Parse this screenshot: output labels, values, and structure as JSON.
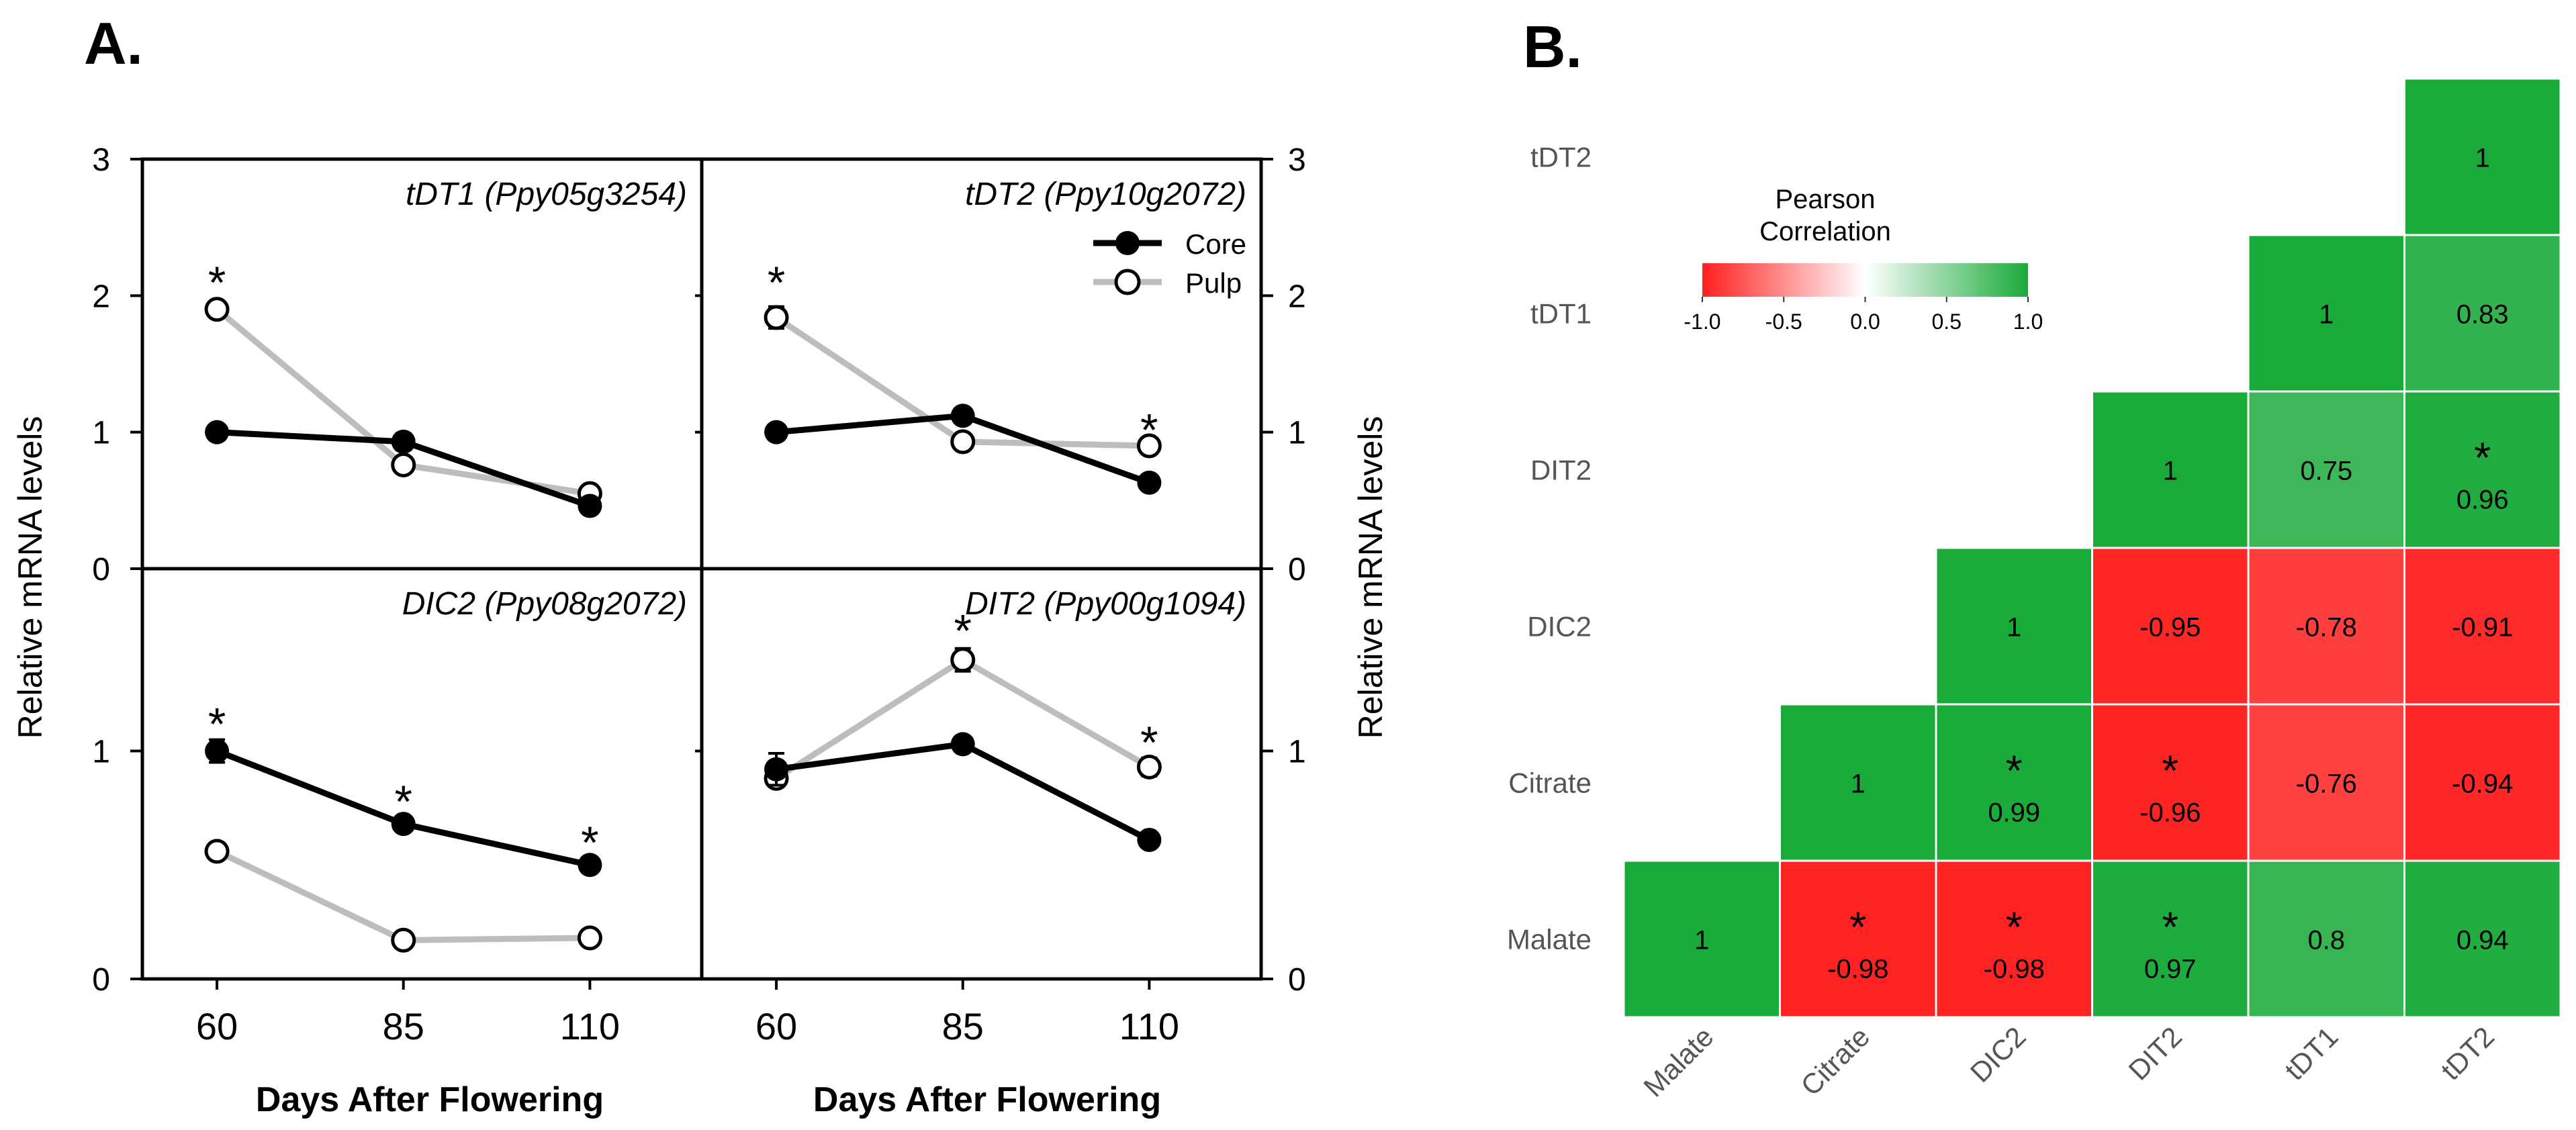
{
  "panel_a_label": "A.",
  "panel_b_label": "B.",
  "colors": {
    "core": "#000000",
    "pulp": "#bdbdbd",
    "positive": "#1aaa3a",
    "negative": "#ff1f1f",
    "neutral": "#ffffff"
  },
  "chart_data": [
    {
      "type": "line",
      "panel": "A",
      "layout": "2x2 small multiples",
      "x": [
        60,
        85,
        110
      ],
      "x_ticks": [
        "60",
        "85",
        "110"
      ],
      "xlabel": "Days After Flowering",
      "ylabel": "Relative mRNA levels",
      "legend": {
        "entries": [
          "Core",
          "Pulp"
        ],
        "placement": "top-right of tDT2 panel"
      },
      "subplots": [
        {
          "title": "tDT1 (Ppy05g3254)",
          "ylim": [
            0,
            3
          ],
          "y_ticks": [
            "0",
            "1",
            "2",
            "3"
          ],
          "series": [
            {
              "name": "Core",
              "values": [
                1.0,
                0.93,
                0.46
              ],
              "errors": [
                0.03,
                0.06,
                0.03
              ]
            },
            {
              "name": "Pulp",
              "values": [
                1.9,
                0.76,
                0.55
              ],
              "errors": [
                0.03,
                0.03,
                0.03
              ]
            }
          ],
          "significance": [
            {
              "x": 60,
              "y": 2.15,
              "text": "*"
            }
          ]
        },
        {
          "title": "tDT2 (Ppy10g2072)",
          "ylim": [
            0,
            3
          ],
          "y_ticks": [
            "0",
            "1",
            "2",
            "3"
          ],
          "series": [
            {
              "name": "Core",
              "values": [
                1.0,
                1.12,
                0.63
              ],
              "errors": [
                0.03,
                0.05,
                0.03
              ]
            },
            {
              "name": "Pulp",
              "values": [
                1.84,
                0.93,
                0.9
              ],
              "errors": [
                0.08,
                0.03,
                0.03
              ]
            }
          ],
          "significance": [
            {
              "x": 60,
              "y": 2.15,
              "text": "*"
            },
            {
              "x": 110,
              "y": 1.07,
              "text": "*"
            }
          ]
        },
        {
          "title": "DIC2 (Ppy08g2072)",
          "ylim": [
            0,
            1.8
          ],
          "y_ticks": [
            "0",
            "1"
          ],
          "series": [
            {
              "name": "Core",
              "values": [
                1.0,
                0.68,
                0.5
              ],
              "errors": [
                0.05,
                0.02,
                0.02
              ]
            },
            {
              "name": "Pulp",
              "values": [
                0.56,
                0.17,
                0.18
              ],
              "errors": [
                0.02,
                0.02,
                0.02
              ]
            }
          ],
          "significance": [
            {
              "x": 60,
              "y": 1.15,
              "text": "*"
            },
            {
              "x": 85,
              "y": 0.81,
              "text": "*"
            },
            {
              "x": 110,
              "y": 0.63,
              "text": "*"
            }
          ]
        },
        {
          "title": "DIT2 (Ppy00g1094)",
          "ylim": [
            0,
            1.8
          ],
          "y_ticks": [
            "0",
            "1"
          ],
          "series": [
            {
              "name": "Core",
              "values": [
                0.92,
                1.03,
                0.61
              ],
              "errors": [
                0.07,
                0.02,
                0.02
              ]
            },
            {
              "name": "Pulp",
              "values": [
                0.88,
                1.4,
                0.93
              ],
              "errors": [
                0.03,
                0.05,
                0.04
              ]
            }
          ],
          "significance": [
            {
              "x": 85,
              "y": 1.56,
              "text": "*"
            },
            {
              "x": 110,
              "y": 1.07,
              "text": "*"
            }
          ]
        }
      ]
    },
    {
      "type": "heatmap",
      "panel": "B",
      "title": "Pearson Correlation",
      "title_lines": [
        "Pearson",
        "Correlation"
      ],
      "x_labels": [
        "Malate",
        "Citrate",
        "DIC2",
        "DIT2",
        "tDT1",
        "tDT2"
      ],
      "y_labels_top_to_bottom": [
        "tDT2",
        "tDT1",
        "DIT2",
        "DIC2",
        "Citrate",
        "Malate"
      ],
      "colorbar": {
        "min": -1.0,
        "max": 1.0,
        "ticks": [
          "-1.0",
          "-0.5",
          "0.0",
          "0.5",
          "1.0"
        ]
      },
      "cells": [
        {
          "row": "Malate",
          "col": "Malate",
          "value": 1,
          "label": "1",
          "sig": false
        },
        {
          "row": "Malate",
          "col": "Citrate",
          "value": -0.98,
          "label": "-0.98",
          "sig": true
        },
        {
          "row": "Malate",
          "col": "DIC2",
          "value": -0.98,
          "label": "-0.98",
          "sig": true
        },
        {
          "row": "Malate",
          "col": "DIT2",
          "value": 0.97,
          "label": "0.97",
          "sig": true
        },
        {
          "row": "Malate",
          "col": "tDT1",
          "value": 0.8,
          "label": "0.8",
          "sig": false
        },
        {
          "row": "Malate",
          "col": "tDT2",
          "value": 0.94,
          "label": "0.94",
          "sig": false
        },
        {
          "row": "Citrate",
          "col": "Citrate",
          "value": 1,
          "label": "1",
          "sig": false
        },
        {
          "row": "Citrate",
          "col": "DIC2",
          "value": 0.99,
          "label": "0.99",
          "sig": true
        },
        {
          "row": "Citrate",
          "col": "DIT2",
          "value": -0.96,
          "label": "-0.96",
          "sig": true
        },
        {
          "row": "Citrate",
          "col": "tDT1",
          "value": -0.76,
          "label": "-0.76",
          "sig": false
        },
        {
          "row": "Citrate",
          "col": "tDT2",
          "value": -0.94,
          "label": "-0.94",
          "sig": false
        },
        {
          "row": "DIC2",
          "col": "DIC2",
          "value": 1,
          "label": "1",
          "sig": false
        },
        {
          "row": "DIC2",
          "col": "DIT2",
          "value": -0.95,
          "label": "-0.95",
          "sig": false
        },
        {
          "row": "DIC2",
          "col": "tDT1",
          "value": -0.78,
          "label": "-0.78",
          "sig": false
        },
        {
          "row": "DIC2",
          "col": "tDT2",
          "value": -0.91,
          "label": "-0.91",
          "sig": false
        },
        {
          "row": "DIT2",
          "col": "DIT2",
          "value": 1,
          "label": "1",
          "sig": false
        },
        {
          "row": "DIT2",
          "col": "tDT1",
          "value": 0.75,
          "label": "0.75",
          "sig": false
        },
        {
          "row": "DIT2",
          "col": "tDT2",
          "value": 0.96,
          "label": "0.96",
          "sig": true
        },
        {
          "row": "tDT1",
          "col": "tDT1",
          "value": 1,
          "label": "1",
          "sig": false
        },
        {
          "row": "tDT1",
          "col": "tDT2",
          "value": 0.83,
          "label": "0.83",
          "sig": false
        },
        {
          "row": "tDT2",
          "col": "tDT2",
          "value": 1,
          "label": "1",
          "sig": false
        }
      ]
    }
  ]
}
